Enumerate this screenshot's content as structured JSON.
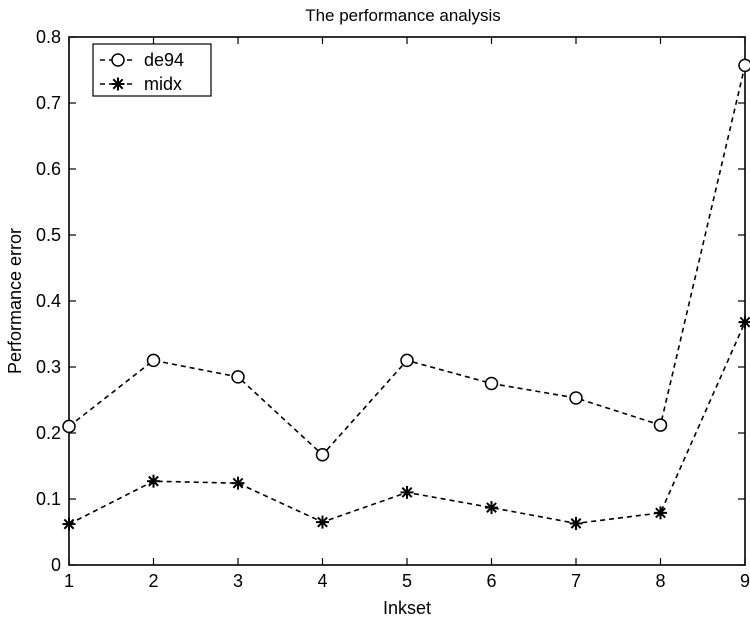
{
  "chart_data": {
    "type": "line",
    "title": "The performance analysis",
    "xlabel": "Inkset",
    "ylabel": "Performance error",
    "x": [
      1,
      2,
      3,
      4,
      5,
      6,
      7,
      8,
      9
    ],
    "xlim": [
      1,
      9
    ],
    "ylim": [
      0,
      0.8
    ],
    "xticks": [
      "1",
      "2",
      "3",
      "4",
      "5",
      "6",
      "7",
      "8",
      "9"
    ],
    "yticks": [
      "0",
      "0.1",
      "0.2",
      "0.3",
      "0.4",
      "0.5",
      "0.6",
      "0.7",
      "0.8"
    ],
    "series": [
      {
        "name": "de94",
        "marker": "circle",
        "line_style": "dashed",
        "color": "#000000",
        "values": [
          0.21,
          0.31,
          0.285,
          0.167,
          0.31,
          0.275,
          0.253,
          0.212,
          0.757
        ]
      },
      {
        "name": "midx",
        "marker": "star",
        "line_style": "dashed",
        "color": "#000000",
        "values": [
          0.062,
          0.127,
          0.124,
          0.065,
          0.11,
          0.087,
          0.063,
          0.079,
          0.368
        ]
      }
    ],
    "grid": false,
    "legend_position": "top-left"
  }
}
